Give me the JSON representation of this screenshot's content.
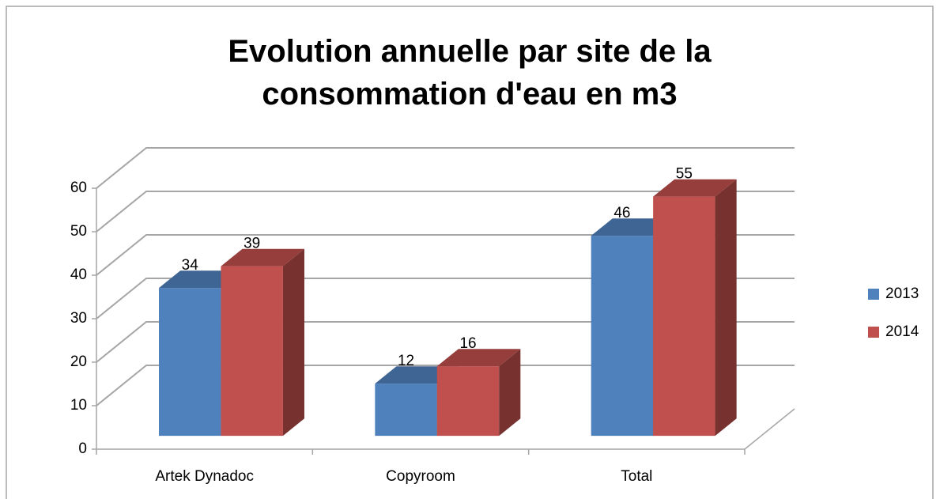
{
  "chart_data": {
    "type": "bar3d",
    "title": "Evolution annuelle par site de la consommation d'eau en m3",
    "categories": [
      "Artek Dynadoc",
      "Copyroom",
      "Total"
    ],
    "series": [
      {
        "name": "2013",
        "color": "#4f81bd",
        "values": [
          34,
          12,
          46
        ]
      },
      {
        "name": "2014",
        "color": "#c0504d",
        "values": [
          39,
          16,
          55
        ]
      }
    ],
    "ylim": [
      0,
      60
    ],
    "yticks": [
      0,
      10,
      20,
      30,
      40,
      50,
      60
    ],
    "grid": true,
    "legend": "right"
  }
}
